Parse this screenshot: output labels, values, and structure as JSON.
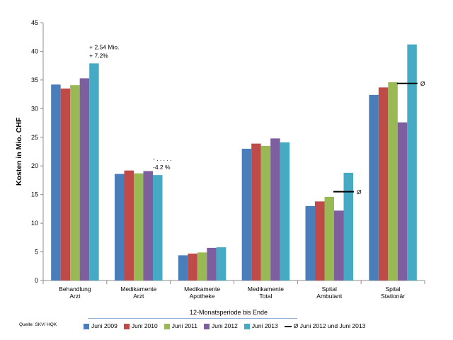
{
  "chart_data": {
    "type": "bar",
    "ylabel": "Kosten in Mio. CHF",
    "xlabel": "12-Monatsperiode bis Ende",
    "ylim": [
      0,
      45
    ],
    "yticks": [
      0,
      5,
      10,
      15,
      20,
      25,
      30,
      35,
      40,
      45
    ],
    "categories": [
      [
        "Behandlung",
        "Arzt"
      ],
      [
        "Medikamente",
        "Arzt"
      ],
      [
        "Medikamente",
        "Apotheke"
      ],
      [
        "Medikamente",
        "Total"
      ],
      [
        "Spital",
        "Ambulant"
      ],
      [
        "Spital",
        "Stationär"
      ]
    ],
    "series": [
      {
        "name": "Juni 2009",
        "color": "#4a7ebb",
        "values": [
          34.2,
          18.6,
          4.4,
          23.0,
          13.0,
          32.4
        ]
      },
      {
        "name": "Juni 2010",
        "color": "#be4b48",
        "values": [
          33.5,
          19.2,
          4.7,
          23.9,
          13.8,
          33.7
        ]
      },
      {
        "name": "Juni 2011",
        "color": "#98b954",
        "values": [
          34.1,
          18.7,
          4.9,
          23.5,
          14.6,
          34.6
        ]
      },
      {
        "name": "Juni 2012",
        "color": "#7d5fa0",
        "values": [
          35.3,
          19.1,
          5.7,
          24.8,
          12.2,
          27.6
        ]
      },
      {
        "name": "Juni 2013",
        "color": "#46aac5",
        "values": [
          37.9,
          18.4,
          5.8,
          24.1,
          18.8,
          41.2
        ]
      }
    ],
    "averages": [
      {
        "category_index": 4,
        "value": 15.5,
        "label": "Ø"
      },
      {
        "category_index": 5,
        "value": 34.4,
        "label": "Ø"
      }
    ],
    "average_legend": "Ø Juni 2012 und Juni 2013",
    "annotations": [
      {
        "category_index": 0,
        "lines": [
          "+ 2.54 Mio.",
          "+ 7.2%"
        ]
      },
      {
        "category_index": 1,
        "lines": [
          "- . . . . .",
          "-4.2 %"
        ]
      }
    ],
    "source": "Quelle: SKV/ HQK",
    "grid": false,
    "legend_position": "bottom"
  }
}
